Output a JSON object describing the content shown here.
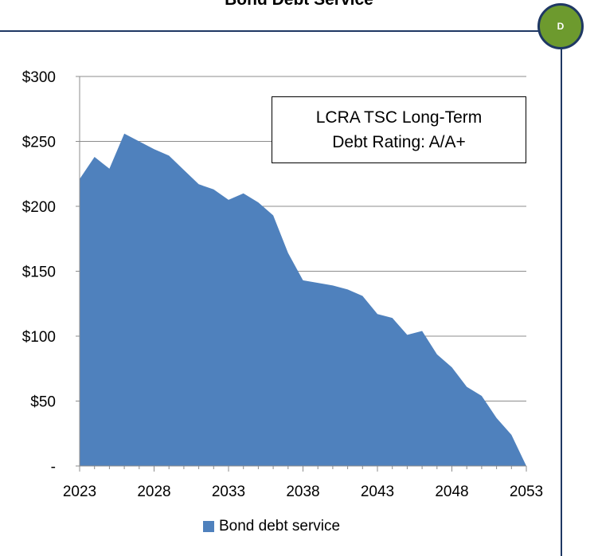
{
  "title": "Bond Debt Service",
  "badge": {
    "label": "D",
    "color": "#6d9a2e",
    "border_color": "#1f3864"
  },
  "annotation": {
    "line1": "LCRA TSC Long-Term",
    "line2": "Debt Rating: A/A+"
  },
  "legend": {
    "label": "Bond debt service",
    "placement": "bottom"
  },
  "chart_data": {
    "type": "area",
    "title": "Bond Debt Service",
    "xlabel": "",
    "ylabel": "",
    "x": [
      2023,
      2024,
      2025,
      2026,
      2027,
      2028,
      2029,
      2030,
      2031,
      2032,
      2033,
      2034,
      2035,
      2036,
      2037,
      2038,
      2039,
      2040,
      2041,
      2042,
      2043,
      2044,
      2045,
      2046,
      2047,
      2048,
      2049,
      2050,
      2051,
      2052,
      2053
    ],
    "series": [
      {
        "name": "Bond debt service",
        "color": "#4f81bd",
        "values": [
          221,
          238,
          229,
          256,
          250,
          244,
          239,
          228,
          217,
          213,
          205,
          210,
          203,
          193,
          164,
          143,
          141,
          139,
          136,
          131,
          117,
          114,
          101,
          104,
          86,
          76,
          61,
          54,
          37,
          24,
          0
        ]
      }
    ],
    "xlim": [
      2023,
      2053
    ],
    "ylim": [
      0,
      300
    ],
    "x_ticks": [
      2023,
      2028,
      2033,
      2038,
      2043,
      2048,
      2053
    ],
    "x_tick_labels": [
      "2023",
      "2028",
      "2033",
      "2038",
      "2043",
      "2048",
      "2053"
    ],
    "y_ticks": [
      0,
      50,
      100,
      150,
      200,
      250,
      300
    ],
    "y_tick_labels": [
      "-",
      "$50",
      "$100",
      "$150",
      "$200",
      "$250",
      "$300"
    ],
    "grid": "horizontal"
  }
}
